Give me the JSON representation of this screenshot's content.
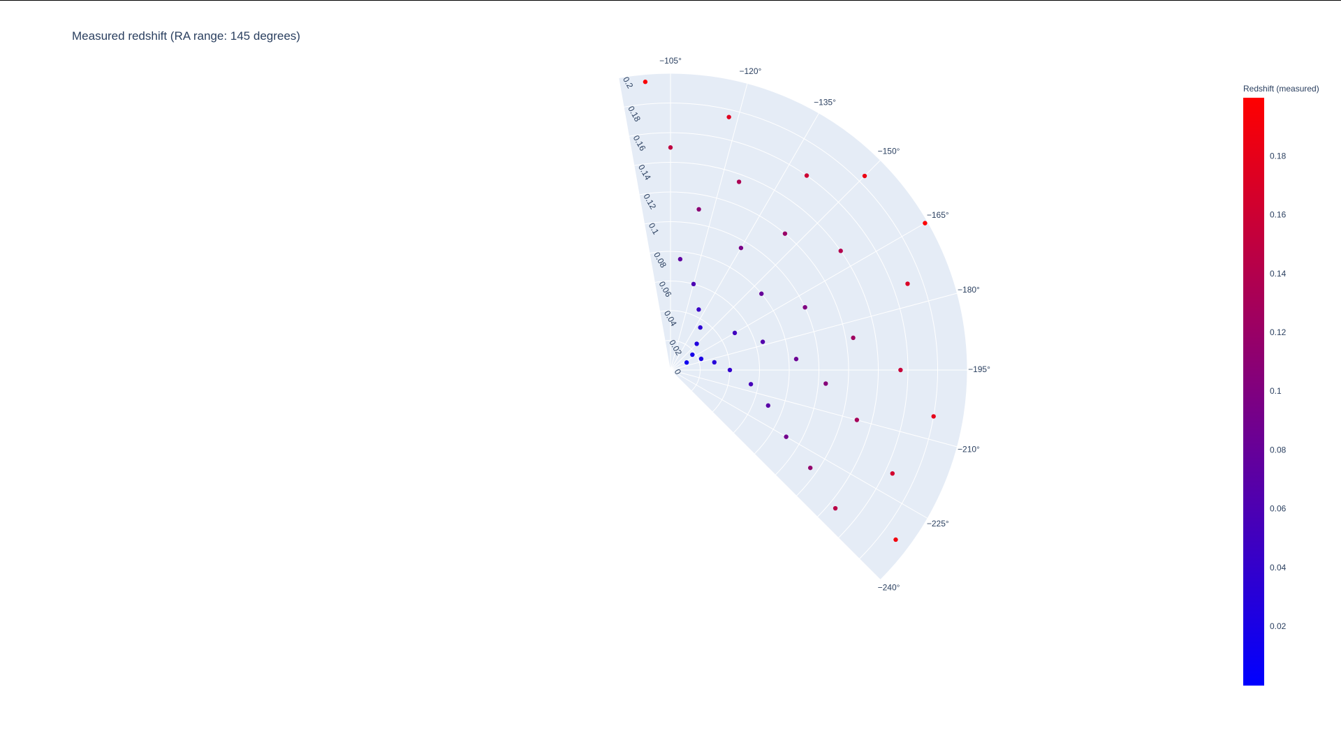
{
  "title": "Measured redshift (RA range: 145 degrees)",
  "colors": {
    "sector_bg": "#e5ecf6",
    "grid": "#ffffff",
    "text": "#2a3f5f",
    "scale_low": "#0000ff",
    "scale_high": "#ff0000"
  },
  "chart_data": {
    "type": "scatter",
    "subtype": "polar",
    "title": "Measured redshift (RA range: 145 degrees)",
    "angular_axis": {
      "unit": "degrees",
      "range": [
        -240,
        -95
      ],
      "tick_labels": [
        "−105°",
        "−120°",
        "−135°",
        "−150°",
        "−165°",
        "−180°",
        "−195°",
        "−210°",
        "−225°",
        "−240°"
      ],
      "tick_values": [
        -105,
        -120,
        -135,
        -150,
        -165,
        -180,
        -195,
        -210,
        -225,
        -240
      ]
    },
    "radial_axis": {
      "range": [
        0,
        0.2
      ],
      "tick_labels": [
        "0",
        "0.02",
        "0.04",
        "0.06",
        "0.08",
        "0.1",
        "0.12",
        "0.14",
        "0.16",
        "0.18",
        "0.2"
      ],
      "tick_values": [
        0,
        0.02,
        0.04,
        0.06,
        0.08,
        0.1,
        0.12,
        0.14,
        0.16,
        0.18,
        0.2
      ]
    },
    "colorbar": {
      "title": "Redshift (measured)",
      "tick_labels": [
        "0.02",
        "0.04",
        "0.06",
        "0.08",
        "0.1",
        "0.12",
        "0.14",
        "0.16",
        "0.18"
      ],
      "tick_values": [
        0.02,
        0.04,
        0.06,
        0.08,
        0.1,
        0.12,
        0.14,
        0.16,
        0.18
      ],
      "range": [
        0,
        0.2
      ],
      "colorscale": [
        "#0000ff",
        "#ff0000"
      ]
    },
    "grid": true,
    "legend": "none",
    "series": [
      {
        "points_note_marker_color": "redshift",
        "points": [
          [
            0.012,
            -170
          ],
          [
            0.018,
            -160
          ],
          [
            0.022,
            -175
          ],
          [
            0.025,
            -150
          ],
          [
            0.03,
            -185
          ],
          [
            0.035,
            -140
          ],
          [
            0.04,
            -195
          ],
          [
            0.045,
            -130
          ],
          [
            0.05,
            -165
          ],
          [
            0.055,
            -205
          ],
          [
            0.06,
            -120
          ],
          [
            0.065,
            -178
          ],
          [
            0.07,
            -215
          ],
          [
            0.075,
            -110
          ],
          [
            0.08,
            -155
          ],
          [
            0.085,
            -190
          ],
          [
            0.09,
            -225
          ],
          [
            0.095,
            -135
          ],
          [
            0.1,
            -170
          ],
          [
            0.105,
            -200
          ],
          [
            0.11,
            -115
          ],
          [
            0.115,
            -230
          ],
          [
            0.12,
            -145
          ],
          [
            0.125,
            -185
          ],
          [
            0.13,
            -210
          ],
          [
            0.135,
            -125
          ],
          [
            0.14,
            -160
          ],
          [
            0.145,
            -235
          ],
          [
            0.15,
            -105
          ],
          [
            0.155,
            -195
          ],
          [
            0.16,
            -140
          ],
          [
            0.165,
            -220
          ],
          [
            0.17,
            -175
          ],
          [
            0.175,
            -118
          ],
          [
            0.18,
            -205
          ],
          [
            0.185,
            -150
          ],
          [
            0.19,
            -232
          ],
          [
            0.195,
            -100
          ],
          [
            0.198,
            -165
          ]
        ]
      }
    ]
  }
}
